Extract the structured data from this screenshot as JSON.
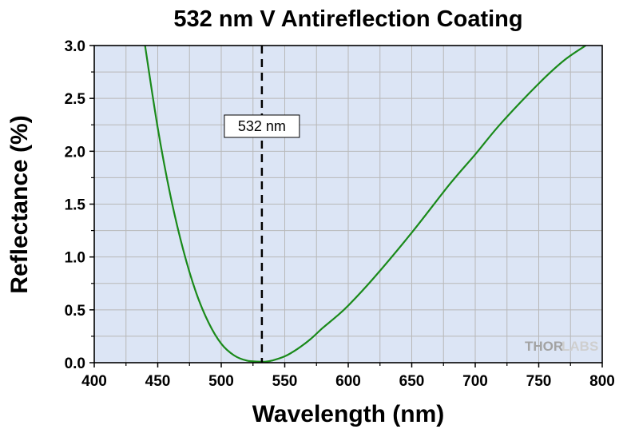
{
  "chart_data": {
    "type": "line",
    "title": "532 nm V Antireflection Coating",
    "xlabel": "Wavelength (nm)",
    "ylabel": "Reflectance (%)",
    "xlim": [
      400,
      800
    ],
    "ylim": [
      0,
      3.0
    ],
    "x_ticks": [
      "400",
      "450",
      "500",
      "550",
      "600",
      "650",
      "700",
      "750",
      "800"
    ],
    "y_ticks": [
      "0.0",
      "0.5",
      "1.0",
      "1.5",
      "2.0",
      "2.5",
      "3.0"
    ],
    "grid": true,
    "series": [
      {
        "color": "#1a8a1a",
        "x": [
          440,
          450,
          460,
          470,
          480,
          490,
          500,
          510,
          520,
          530,
          535,
          540,
          550,
          560,
          570,
          580,
          590,
          600,
          620,
          650,
          680,
          700,
          720,
          750,
          770,
          787
        ],
        "y": [
          3.0,
          2.22,
          1.58,
          1.07,
          0.67,
          0.38,
          0.18,
          0.07,
          0.02,
          0.01,
          0.01,
          0.02,
          0.06,
          0.13,
          0.22,
          0.33,
          0.43,
          0.54,
          0.8,
          1.23,
          1.69,
          1.97,
          2.26,
          2.64,
          2.86,
          3.0
        ]
      }
    ],
    "reference_line": {
      "x": 532,
      "label": "532 nm",
      "style": "dashed"
    }
  },
  "logo": {
    "text_dark": "THOR",
    "text_light": "LABS"
  },
  "colors": {
    "plot_background": "#dce5f5",
    "grid": "#b8b8b8",
    "curve": "#1a8a1a"
  }
}
